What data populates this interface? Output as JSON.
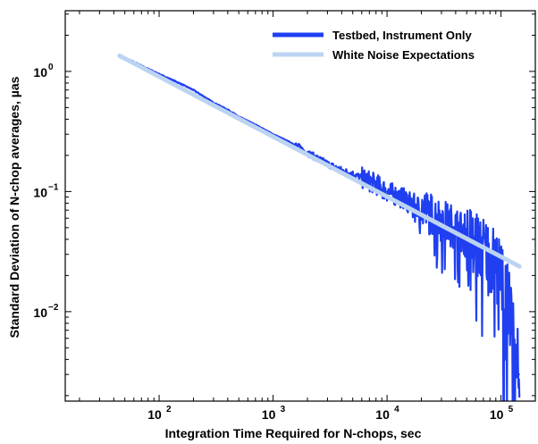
{
  "chart_data": {
    "type": "line",
    "title": "",
    "xlabel": "Integration Time Required for N-chops, sec",
    "ylabel": "Standard Deviation of N-chop averages, µas",
    "xscale": "log",
    "yscale": "log",
    "xlim": [
      15,
      200000
    ],
    "ylim": [
      0.0018,
      3.2
    ],
    "x_ticks": [
      {
        "value": 100,
        "base": "10",
        "exp": "2"
      },
      {
        "value": 1000,
        "base": "10",
        "exp": "3"
      },
      {
        "value": 10000,
        "base": "10",
        "exp": "4"
      },
      {
        "value": 100000,
        "base": "10",
        "exp": "5"
      }
    ],
    "y_ticks": [
      {
        "value": 1,
        "base": "10",
        "exp": "0"
      },
      {
        "value": 0.1,
        "base": "10",
        "exp": "−1"
      },
      {
        "value": 0.01,
        "base": "10",
        "exp": "−2"
      }
    ],
    "grid": false,
    "legend_position": "top-right",
    "series": [
      {
        "name": "Testbed, Instrument Only",
        "color": "#1f3ff0",
        "style": "noisy",
        "x": [
          45,
          60,
          80,
          100,
          150,
          200,
          300,
          400,
          500,
          700,
          1000,
          1500,
          2000,
          3000,
          4000,
          5000,
          6000,
          8000,
          10000,
          15000,
          20000,
          30000,
          40000,
          50000,
          70000,
          90000,
          110000,
          130000,
          145000
        ],
        "y": [
          1.35,
          1.2,
          1.05,
          0.95,
          0.8,
          0.7,
          0.55,
          0.48,
          0.42,
          0.36,
          0.3,
          0.25,
          0.21,
          0.17,
          0.15,
          0.14,
          0.13,
          0.115,
          0.1,
          0.085,
          0.072,
          0.058,
          0.05,
          0.042,
          0.033,
          0.025,
          0.015,
          0.007,
          0.003
        ]
      },
      {
        "name": "White Noise Expectations",
        "color": "#bcd4f2",
        "style": "smooth",
        "x": [
          45,
          145000
        ],
        "y": [
          1.35,
          0.0238
        ]
      }
    ]
  }
}
